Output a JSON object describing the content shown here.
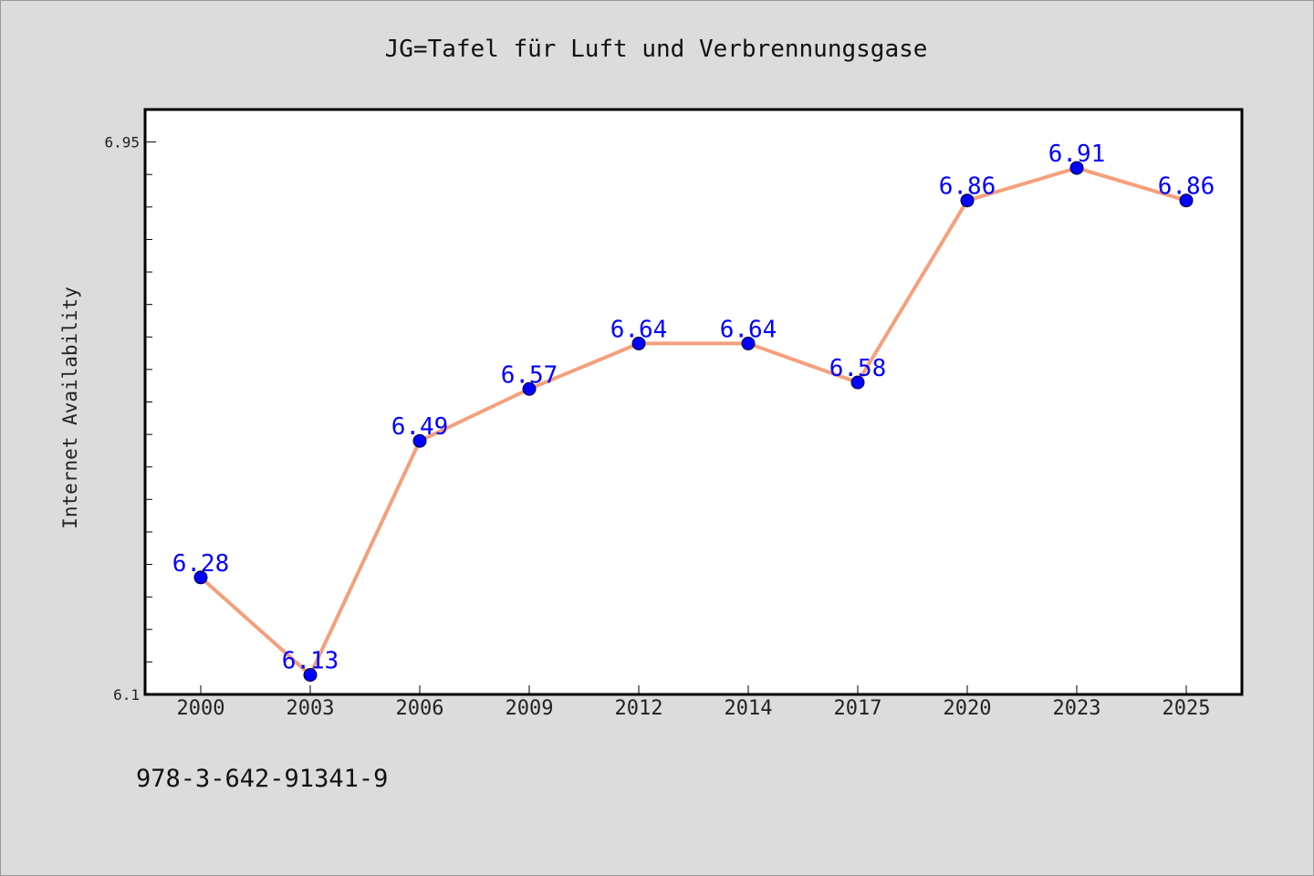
{
  "chart_data": {
    "type": "line",
    "title": "JG=Tafel für Luft und Verbrennungsgase",
    "ylabel": "Internet Availability",
    "xlabel": "",
    "categories": [
      "2000",
      "2003",
      "2006",
      "2009",
      "2012",
      "2014",
      "2017",
      "2020",
      "2023",
      "2025"
    ],
    "series": [
      {
        "values": [
          6.28,
          6.13,
          6.49,
          6.57,
          6.64,
          6.64,
          6.58,
          6.86,
          6.91,
          6.86
        ],
        "labels": [
          "6.28",
          "6.13",
          "6.49",
          "6.57",
          "6.64",
          "6.64",
          "6.58",
          "6.86",
          "6.91",
          "6.86"
        ]
      }
    ],
    "ylim": [
      6.1,
      7.0
    ],
    "yticks": [
      6.1,
      6.95
    ],
    "ytick_labels": [
      "6.1",
      "6.95"
    ],
    "grid": false,
    "line_color": "#f4a07c",
    "marker_color": "#0000ff",
    "label_color": "#0000ff"
  },
  "footer": {
    "isbn": "978-3-642-91341-9"
  }
}
